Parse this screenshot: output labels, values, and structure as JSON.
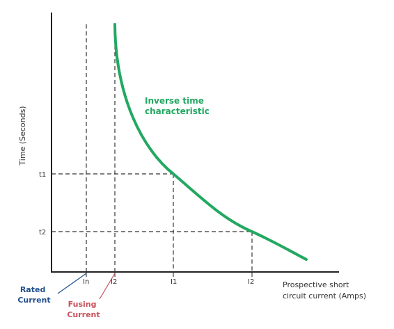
{
  "y_axis_label": "Time (Seconds)",
  "x_axis_label": [
    "Prospective short",
    "circuit current (Amps)"
  ],
  "y_ticks": {
    "t1": "t1",
    "t2": "t2"
  },
  "x_ticks": {
    "in": "In",
    "i2_fusing": "I2",
    "i1": "I1",
    "i2": "I2"
  },
  "curve_label": [
    "Inverse time",
    "characteristic"
  ],
  "rated_current_label": [
    "Rated",
    "Current"
  ],
  "fusing_current_label": [
    "Fusing",
    "Current"
  ],
  "colors": {
    "curve": "#22a861",
    "axis": "#222222",
    "dashed": "#333333",
    "rated": "#1f4e8c",
    "fusing": "#c8505a"
  }
}
